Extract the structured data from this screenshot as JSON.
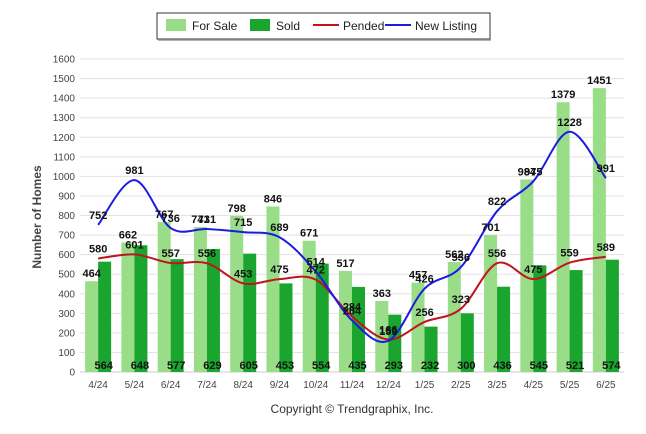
{
  "chart_data": {
    "type": "bar",
    "ylabel": "Number of Homes",
    "ylim": [
      0,
      1600
    ],
    "ytick_step": 100,
    "grid": true,
    "legend_position": "top-center",
    "categories": [
      "4/24",
      "5/24",
      "6/24",
      "7/24",
      "8/24",
      "9/24",
      "10/24",
      "11/24",
      "12/24",
      "1/25",
      "2/25",
      "3/25",
      "4/25",
      "5/25",
      "6/25"
    ],
    "series": [
      {
        "name": "For Sale",
        "kind": "bar",
        "color": "#99dd88",
        "values": [
          464,
          662,
          767,
          741,
          798,
          846,
          671,
          517,
          363,
          457,
          562,
          701,
          984,
          1379,
          1451
        ]
      },
      {
        "name": "Sold",
        "kind": "bar",
        "color": "#1aa52e",
        "values": [
          564,
          648,
          577,
          629,
          605,
          453,
          554,
          435,
          293,
          232,
          300,
          436,
          545,
          521,
          574
        ]
      },
      {
        "name": "Pended",
        "kind": "line",
        "color": "#c0141e",
        "values": [
          580,
          601,
          557,
          556,
          453,
          475,
          472,
          284,
          166,
          256,
          323,
          556,
          475,
          559,
          589
        ]
      },
      {
        "name": "New Listing",
        "kind": "line",
        "color": "#1c1ce0",
        "values": [
          752,
          981,
          736,
          731,
          715,
          689,
          514,
          264,
          159,
          426,
          536,
          822,
          975,
          1228,
          991
        ]
      }
    ]
  },
  "credit": "Copyright © Trendgraphix, Inc."
}
